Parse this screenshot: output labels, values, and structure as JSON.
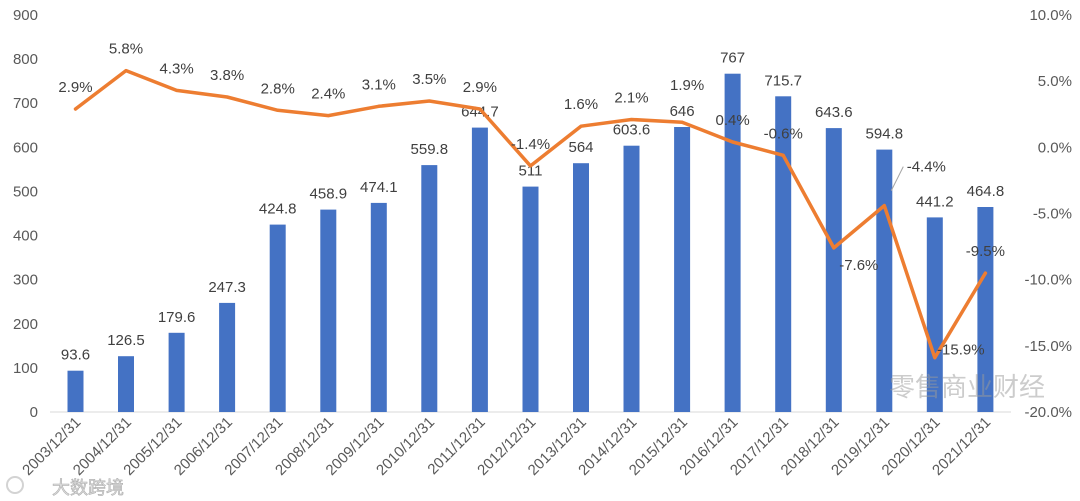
{
  "chart_data": {
    "type": "bar",
    "categories": [
      "2003/12/31",
      "2004/12/31",
      "2005/12/31",
      "2006/12/31",
      "2007/12/31",
      "2008/12/31",
      "2009/12/31",
      "2010/12/31",
      "2011/12/31",
      "2012/12/31",
      "2013/12/31",
      "2014/12/31",
      "2015/12/31",
      "2016/12/31",
      "2017/12/31",
      "2018/12/31",
      "2019/12/31",
      "2020/12/31",
      "2021/12/31"
    ],
    "series": [
      {
        "type": "bar",
        "y_axis": "left",
        "color": "#4472C4",
        "values": [
          93.6,
          126.5,
          179.6,
          247.3,
          424.8,
          458.9,
          474.1,
          559.8,
          644.7,
          511,
          564,
          603.6,
          646,
          767,
          715.7,
          643.6,
          594.8,
          441.2,
          464.8
        ],
        "labels": [
          "93.6",
          "126.5",
          "179.6",
          "247.3",
          "424.8",
          "458.9",
          "474.1",
          "559.8",
          "644.7",
          "511",
          "564",
          "603.6",
          "646",
          "767",
          "715.7",
          "643.6",
          "594.8",
          "441.2",
          "464.8"
        ]
      },
      {
        "type": "line",
        "y_axis": "right",
        "color": "#ED7D31",
        "values": [
          2.9,
          5.8,
          4.3,
          3.8,
          2.8,
          2.4,
          3.1,
          3.5,
          2.9,
          -1.4,
          1.6,
          2.1,
          1.9,
          0.4,
          -0.6,
          -7.6,
          -4.4,
          -15.9,
          -9.5
        ],
        "labels": [
          "2.9%",
          "5.8%",
          "4.3%",
          "3.8%",
          "2.8%",
          "2.4%",
          "3.1%",
          "3.5%",
          "2.9%",
          "-1.4%",
          "1.6%",
          "2.1%",
          "1.9%",
          "0.4%",
          "-0.6%",
          "-7.6%",
          "-4.4%",
          "-15.9%",
          "-9.5%"
        ]
      }
    ],
    "y_axis_left": {
      "range": [
        0,
        900
      ],
      "ticks": [
        {
          "value": 0,
          "label": "0"
        },
        {
          "value": 100,
          "label": "100"
        },
        {
          "value": 200,
          "label": "200"
        },
        {
          "value": 300,
          "label": "300"
        },
        {
          "value": 400,
          "label": "400"
        },
        {
          "value": 500,
          "label": "500"
        },
        {
          "value": 600,
          "label": "600"
        },
        {
          "value": 700,
          "label": "700"
        },
        {
          "value": 800,
          "label": "800"
        },
        {
          "value": 900,
          "label": "900"
        }
      ]
    },
    "y_axis_right": {
      "range": [
        -20,
        10
      ],
      "ticks": [
        {
          "value": 10,
          "label": "10.0%"
        },
        {
          "value": 5,
          "label": "5.0%"
        },
        {
          "value": 0,
          "label": "0.0%"
        },
        {
          "value": -5,
          "label": "-5.0%"
        },
        {
          "value": -10,
          "label": "-10.0%"
        },
        {
          "value": -15,
          "label": "-15.0%"
        },
        {
          "value": -20,
          "label": "-20.0%"
        }
      ]
    },
    "grid": false,
    "legend": "none",
    "title": "",
    "xlabel": "",
    "ylabel": ""
  },
  "watermarks": {
    "primary": "零售商业财经",
    "secondary": "大数跨境"
  }
}
